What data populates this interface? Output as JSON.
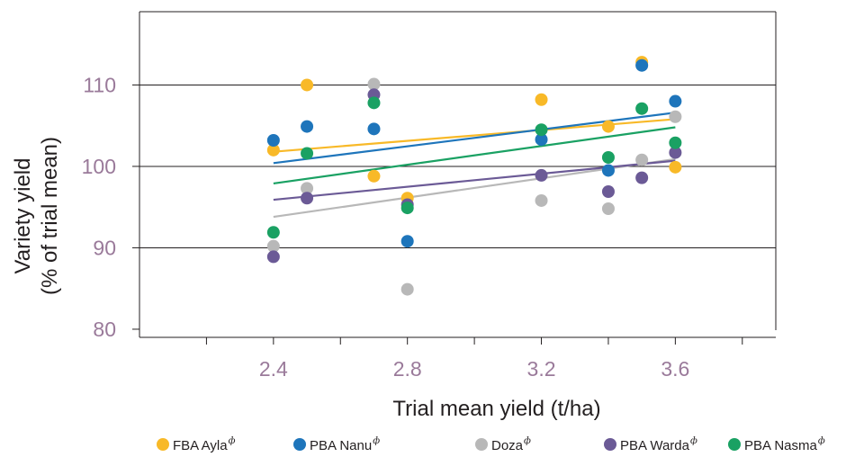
{
  "chart_data": {
    "type": "scatter",
    "title": "",
    "xlabel": "Trial mean yield (t/ha)",
    "ylabel_lines": [
      "Variety yield",
      "(% of trial mean)"
    ],
    "xlim": [
      2.0,
      3.9
    ],
    "ylim": [
      79,
      119
    ],
    "x_ticks": [
      2.4,
      2.8,
      3.2,
      3.6
    ],
    "x_tick_labels": [
      "2.4",
      "2.8",
      "3.2",
      "3.6"
    ],
    "x_minor_ticks": [
      2.2,
      2.6,
      3.0,
      3.4,
      3.8
    ],
    "y_ticks": [
      80,
      90,
      100,
      110
    ],
    "y_tick_labels": [
      "80",
      "90",
      "100",
      "110"
    ],
    "y_gridlines": [
      90,
      100,
      110,
      119
    ],
    "tick_label_color": "#9a7a9a",
    "grid": true,
    "legend_position": "bottom",
    "series": [
      {
        "name": "FBA Ayla",
        "superscript": "ф",
        "color": "#f8b928",
        "x": [
          2.4,
          2.5,
          2.7,
          2.8,
          3.2,
          3.4,
          3.5,
          3.6
        ],
        "y": [
          102,
          110,
          98.8,
          96.1,
          108.2,
          104.9,
          112.8,
          99.9
        ],
        "trend": [
          [
            2.4,
            101.8
          ],
          [
            3.6,
            105.8
          ]
        ]
      },
      {
        "name": "PBA Nanu",
        "superscript": "ф",
        "color": "#1e75bb",
        "x": [
          2.4,
          2.5,
          2.7,
          2.8,
          3.2,
          3.4,
          3.5,
          3.6
        ],
        "y": [
          103.2,
          104.9,
          104.6,
          90.8,
          103.3,
          99.5,
          112.4,
          108
        ],
        "trend": [
          [
            2.4,
            100.4
          ],
          [
            3.6,
            106.6
          ]
        ]
      },
      {
        "name": "Doza",
        "superscript": "ф",
        "color": "#b8b8b8",
        "x": [
          2.4,
          2.5,
          2.7,
          2.8,
          3.2,
          3.4,
          3.5,
          3.6
        ],
        "y": [
          90.2,
          97.3,
          110.1,
          84.9,
          95.8,
          94.8,
          100.8,
          106.1
        ],
        "trend": [
          [
            2.4,
            93.8
          ],
          [
            3.6,
            100.9
          ]
        ]
      },
      {
        "name": "PBA Warda",
        "superscript": "ф",
        "color": "#6b5a96",
        "x": [
          2.4,
          2.5,
          2.7,
          2.8,
          3.2,
          3.4,
          3.5,
          3.6
        ],
        "y": [
          88.9,
          96.1,
          108.8,
          95.3,
          98.9,
          96.9,
          98.6,
          101.7
        ],
        "trend": [
          [
            2.4,
            95.9
          ],
          [
            3.6,
            100.7
          ]
        ]
      },
      {
        "name": "PBA Nasma",
        "superscript": "ф",
        "color": "#1aa163",
        "x": [
          2.4,
          2.5,
          2.7,
          2.8,
          3.2,
          3.4,
          3.5,
          3.6
        ],
        "y": [
          91.9,
          101.6,
          107.8,
          94.9,
          104.5,
          101.1,
          107.1,
          102.9
        ],
        "trend": [
          [
            2.4,
            97.9
          ],
          [
            3.6,
            104.8
          ]
        ]
      }
    ]
  }
}
